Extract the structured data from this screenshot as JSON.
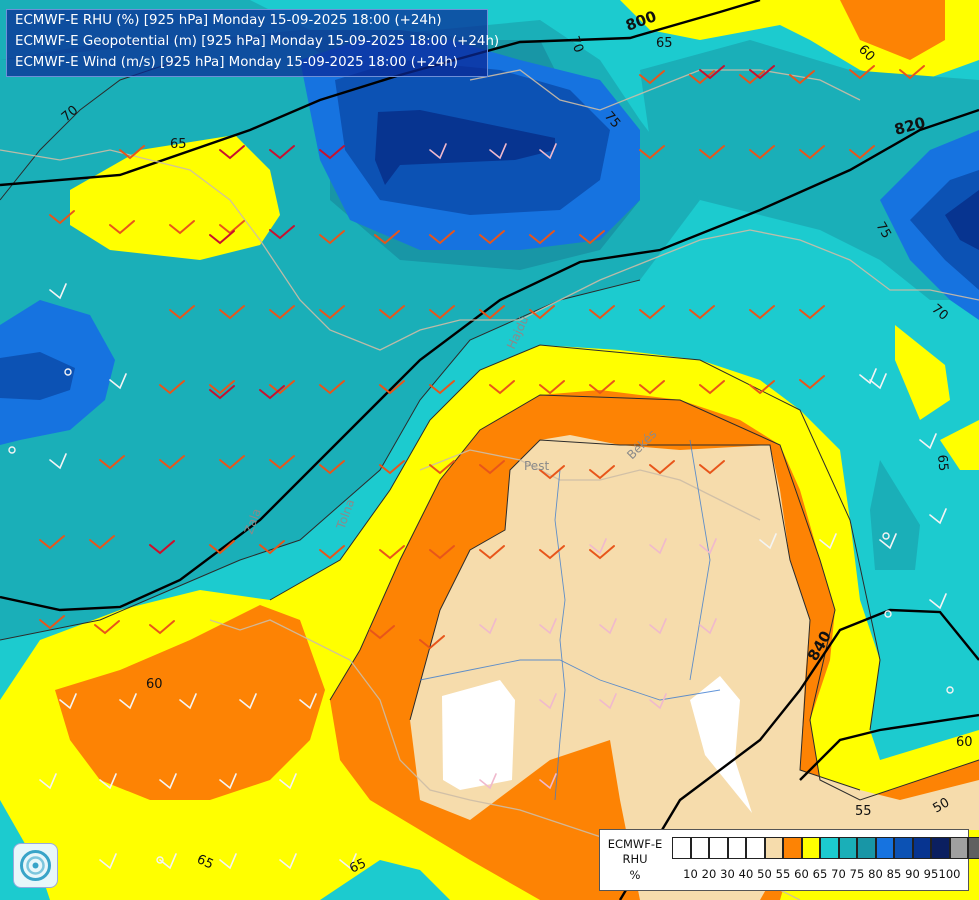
{
  "titles": {
    "line1": "ECMWF-E RHU (%) [925 hPa] Monday 15-09-2025 18:00 (+24h)",
    "line2": "ECMWF-E Geopotential (m) [925 hPa] Monday 15-09-2025 18:00 (+24h)",
    "line3": "ECMWF-E Wind (m/s) [925 hPa] Monday 15-09-2025 18:00 (+24h)"
  },
  "legend": {
    "title_line1": "ECMWF-E",
    "title_line2": "RHU",
    "title_line3": "%",
    "ticks": [
      "10",
      "20",
      "30",
      "40",
      "50",
      "55",
      "60",
      "65",
      "70",
      "75",
      "80",
      "85",
      "90",
      "95",
      "100"
    ],
    "colors": [
      "#ffffff",
      "#ffffff",
      "#ffffff",
      "#ffffff",
      "#ffffff",
      "#f6dcac",
      "#fd8304",
      "#ffff00",
      "#1ccbcf",
      "#1aafb8",
      "#1896a6",
      "#1673e0",
      "#0c52b4",
      "#073490",
      "#0b1f60",
      "#a0a0a0",
      "#606060"
    ]
  },
  "contour_labels": {
    "rhu_70_a": "70",
    "rhu_65_a": "65",
    "rhu_70_b": "70",
    "rhu_75_a": "75",
    "rhu_65_b": "65",
    "rhu_60_a": "60",
    "rhu_75_b": "75",
    "rhu_70_c": "70",
    "rhu_65_c": "65",
    "rhu_60_b": "60",
    "rhu_60_c": "60",
    "rhu_55": "55",
    "rhu_50": "50",
    "rhu_65_d": "65",
    "rhu_65_e": "65"
  },
  "geopotential_labels": {
    "g800": "800",
    "g820": "820",
    "g840": "840"
  },
  "place_labels": {
    "pest": "Pest",
    "bekes": "Békés",
    "hajdu": "Hajdú",
    "tolna": "Tolna",
    "zala": "Zala"
  },
  "colors": {
    "rhu_55": "#f6dcac",
    "rhu_60": "#fd8304",
    "rhu_65": "#ffff00",
    "rhu_70": "#1ccbcf",
    "rhu_75": "#1aafb8",
    "rhu_80": "#1896a6",
    "rhu_85": "#1673e0",
    "rhu_90": "#0c52b4",
    "rhu_95": "#073490",
    "geopotential_line": "#000000",
    "wind_barb_orange": "#e8551a",
    "wind_barb_red": "#c8102e"
  }
}
